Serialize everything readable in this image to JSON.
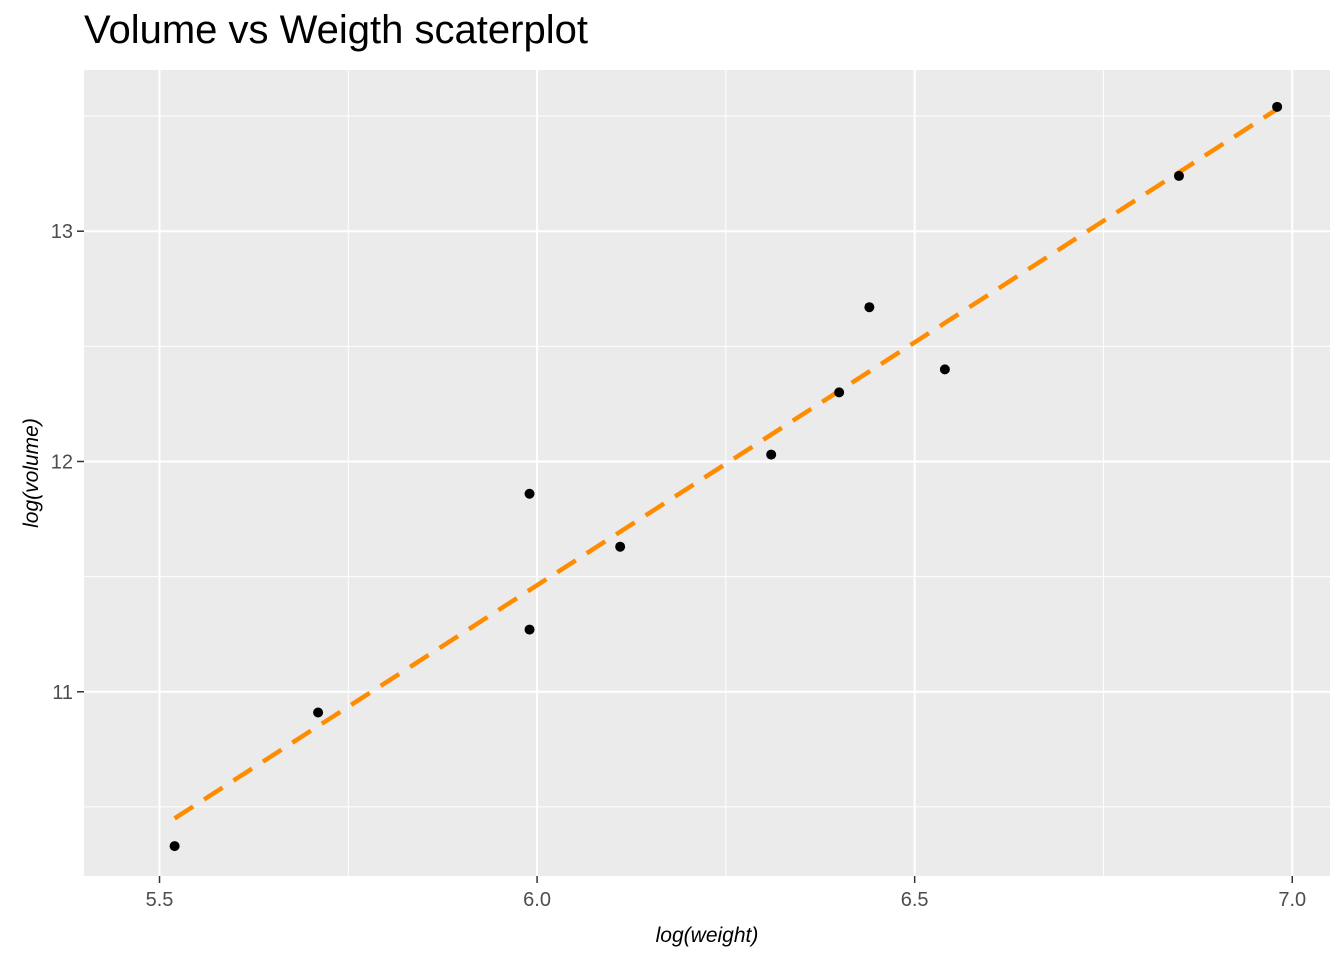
{
  "chart_data": {
    "type": "scatter",
    "title": "Volume vs Weigth scaterplot",
    "xlabel": "log(weight)",
    "ylabel": "log(volume)",
    "xlim": [
      5.4,
      7.05
    ],
    "ylim": [
      10.2,
      13.7
    ],
    "x_major": [
      5.5,
      6.0,
      6.5,
      7.0
    ],
    "x_minor": [
      5.75,
      6.25,
      6.75
    ],
    "y_major": [
      11,
      12,
      13
    ],
    "y_minor": [
      10.5,
      11.5,
      12.5,
      13.5
    ],
    "x_tick_labels": [
      "5.5",
      "6.0",
      "6.5",
      "7.0"
    ],
    "y_tick_labels": [
      "11",
      "12",
      "13"
    ],
    "points": [
      {
        "x": 5.52,
        "y": 10.33
      },
      {
        "x": 5.71,
        "y": 10.91
      },
      {
        "x": 5.99,
        "y": 11.86
      },
      {
        "x": 5.99,
        "y": 11.27
      },
      {
        "x": 6.11,
        "y": 11.63
      },
      {
        "x": 6.31,
        "y": 12.03
      },
      {
        "x": 6.4,
        "y": 12.3
      },
      {
        "x": 6.44,
        "y": 12.67
      },
      {
        "x": 6.54,
        "y": 12.4
      },
      {
        "x": 6.85,
        "y": 13.24
      },
      {
        "x": 6.98,
        "y": 13.54
      }
    ],
    "fit_line": {
      "x": [
        5.52,
        6.98
      ],
      "y": [
        10.45,
        13.53
      ],
      "style": "dashed",
      "color": "#FF8C00"
    },
    "panel_background": "#EBEBEB",
    "grid_color": "#FFFFFF",
    "point_color": "#000000"
  }
}
